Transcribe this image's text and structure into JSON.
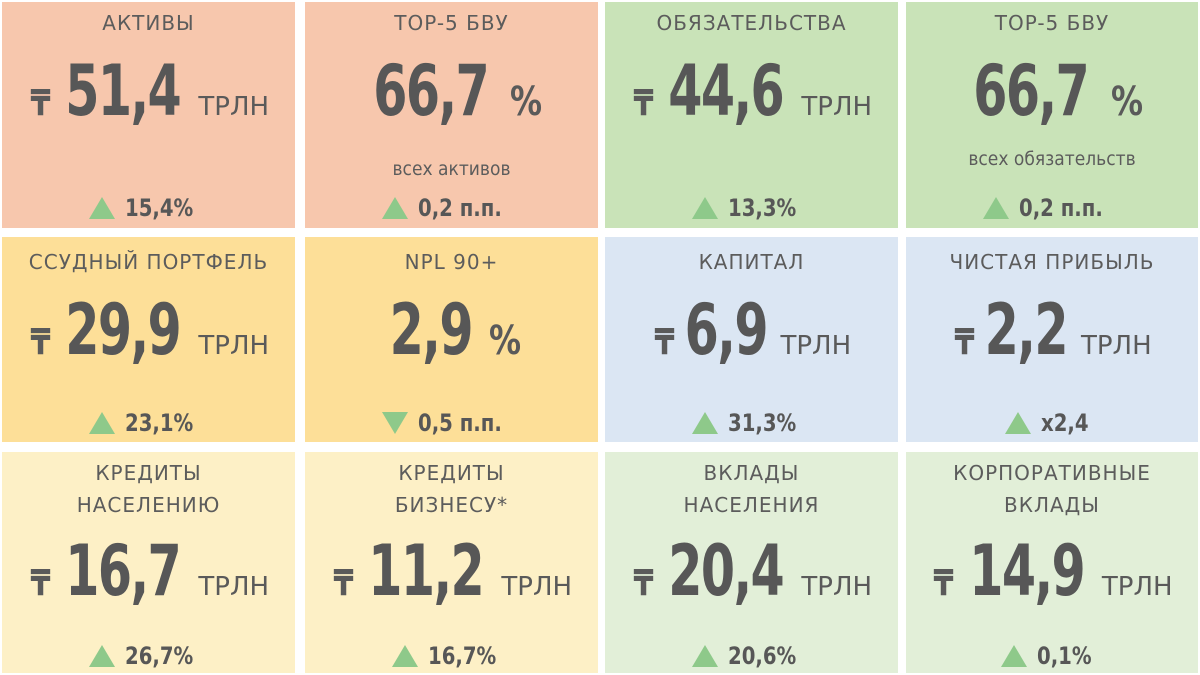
{
  "colors": {
    "salmon": "#f7c7ad",
    "green_dark": "#c9e3b8",
    "yellow": "#fddf98",
    "blue": "#dbe6f3",
    "cream": "#fdf0c6",
    "green_light": "#e2efd8",
    "triangle": "#8ec98a",
    "text": "#575757"
  },
  "currency_symbol": "₸",
  "unit": "ТРЛН",
  "cards": [
    {
      "title": "АКТИВЫ",
      "value": "51,4",
      "delta_dir": "up",
      "delta": "15,4%"
    },
    {
      "title": "TOP-5 БВУ",
      "value": "66,7",
      "value_suffix": "%",
      "subtitle": "всех активов",
      "delta_dir": "up",
      "delta": "0,2 п.п."
    },
    {
      "title": "ОБЯЗАТЕЛЬСТВА",
      "value": "44,6",
      "delta_dir": "up",
      "delta": "13,3%"
    },
    {
      "title": "TOP-5 БВУ",
      "value": "66,7",
      "value_suffix": "%",
      "subtitle": "всех обязательств",
      "delta_dir": "up",
      "delta": "0,2 п.п."
    },
    {
      "title": "ССУДНЫЙ ПОРТФЕЛЬ",
      "value": "29,9",
      "delta_dir": "up",
      "delta": "23,1%"
    },
    {
      "title": "NPL 90+",
      "value": "2,9",
      "value_suffix": "%",
      "delta_dir": "down",
      "delta": "0,5 п.п."
    },
    {
      "title": "КАПИТАЛ",
      "value": "6,9",
      "delta_dir": "up",
      "delta": "31,3%"
    },
    {
      "title": "ЧИСТАЯ ПРИБЫЛЬ",
      "value": "2,2",
      "delta_dir": "up",
      "delta": "x2,4"
    },
    {
      "title_line1": "КРЕДИТЫ",
      "title_line2": "НАСЕЛЕНИЮ",
      "value": "16,7",
      "delta_dir": "up",
      "delta": "26,7%"
    },
    {
      "title_line1": "КРЕДИТЫ",
      "title_line2": "БИЗНЕСУ*",
      "value": "11,2",
      "delta_dir": "up",
      "delta": "16,7%"
    },
    {
      "title_line1": "ВКЛАДЫ",
      "title_line2": "НАСЕЛЕНИЯ",
      "value": "20,4",
      "delta_dir": "up",
      "delta": "20,6%"
    },
    {
      "title_line1": "КОРПОРАТИВНЫЕ",
      "title_line2": "ВКЛАДЫ",
      "value": "14,9",
      "delta_dir": "up",
      "delta": "0,1%"
    }
  ]
}
